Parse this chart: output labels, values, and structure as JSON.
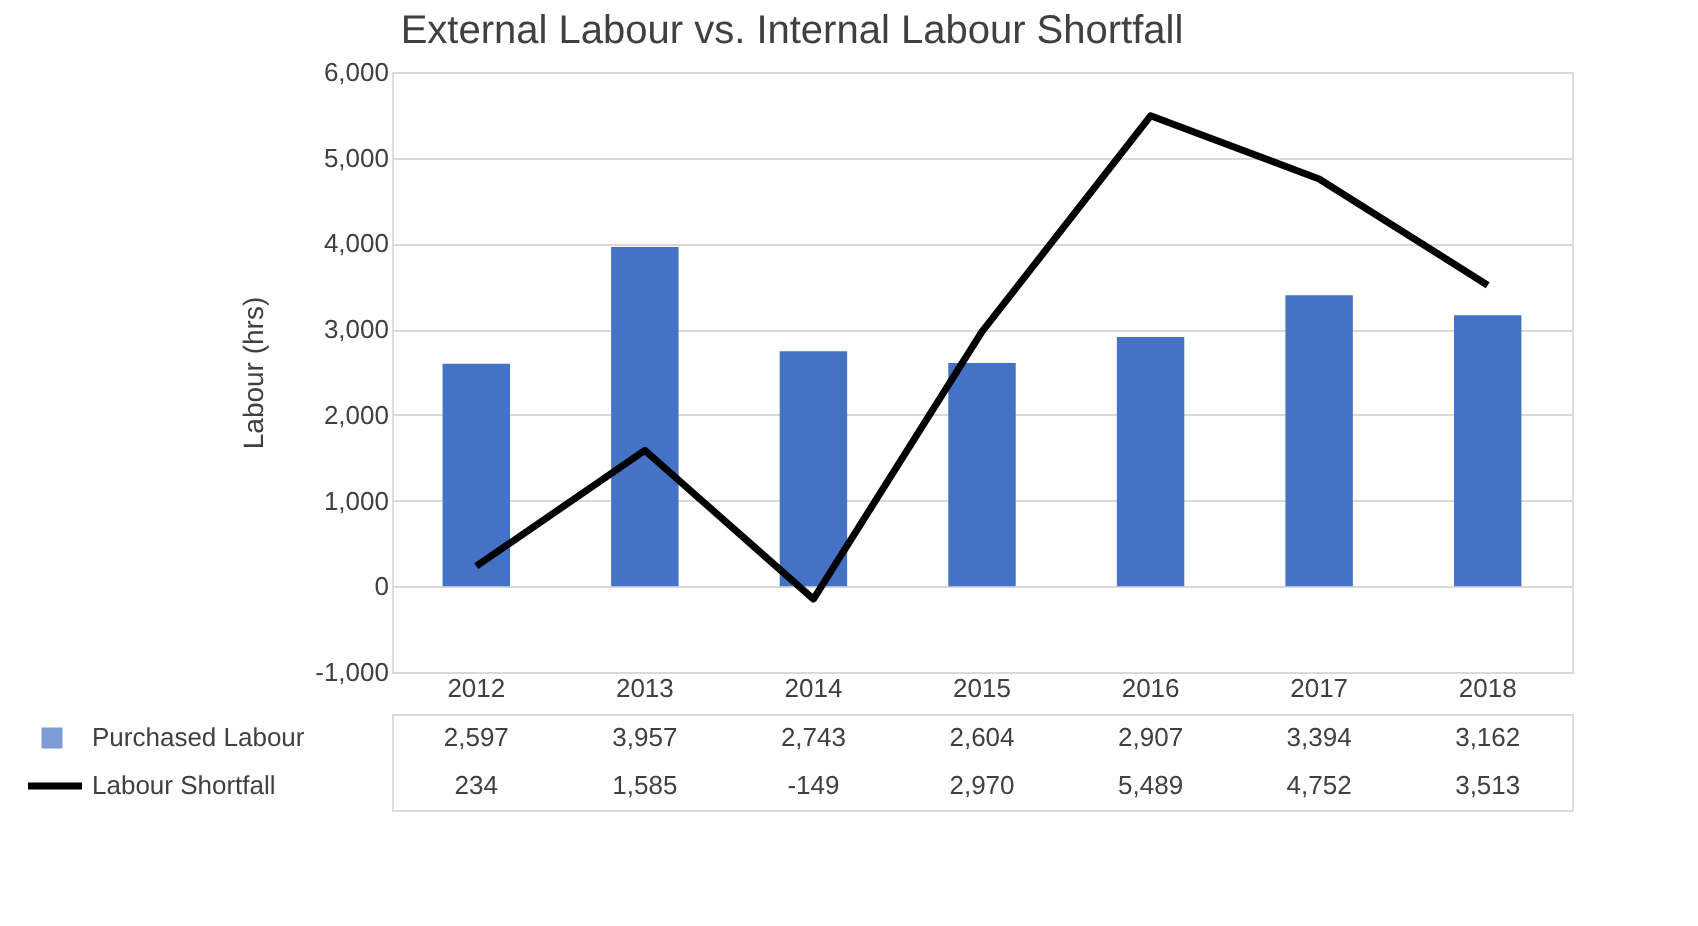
{
  "chart_data": {
    "type": "bar",
    "title": "External Labour vs. Internal Labour Shortfall",
    "ylabel": "Labour (hrs)",
    "categories": [
      "2012",
      "2013",
      "2014",
      "2015",
      "2016",
      "2017",
      "2018"
    ],
    "series": [
      {
        "name": "Purchased Labour",
        "color": "#4472c4",
        "values": [
          2597,
          3957,
          2743,
          2604,
          2907,
          3394,
          3162
        ],
        "value_labels": [
          "2,597",
          "3,957",
          "2,743",
          "2,604",
          "2,907",
          "3,394",
          "3,162"
        ]
      },
      {
        "name": "Labour Shortfall",
        "type": "line",
        "color": "#000000",
        "values": [
          234,
          1585,
          -149,
          2970,
          5489,
          4752,
          3513
        ],
        "value_labels": [
          "234",
          "1,585",
          "-149",
          "2,970",
          "5,489",
          "4,752",
          "3,513"
        ]
      }
    ],
    "ylim": [
      -1000,
      6000
    ],
    "yticks": [
      {
        "value": -1000,
        "label": "-1,000"
      },
      0,
      {
        "value": 1000,
        "label": "1,000"
      },
      {
        "value": 2000,
        "label": "2,000"
      },
      {
        "value": 3000,
        "label": "3,000"
      },
      {
        "value": 4000,
        "label": "4,000"
      },
      {
        "value": 5000,
        "label": "5,000"
      },
      {
        "value": 6000,
        "label": "6,000"
      }
    ],
    "grid": "y",
    "legend": "bottom"
  }
}
